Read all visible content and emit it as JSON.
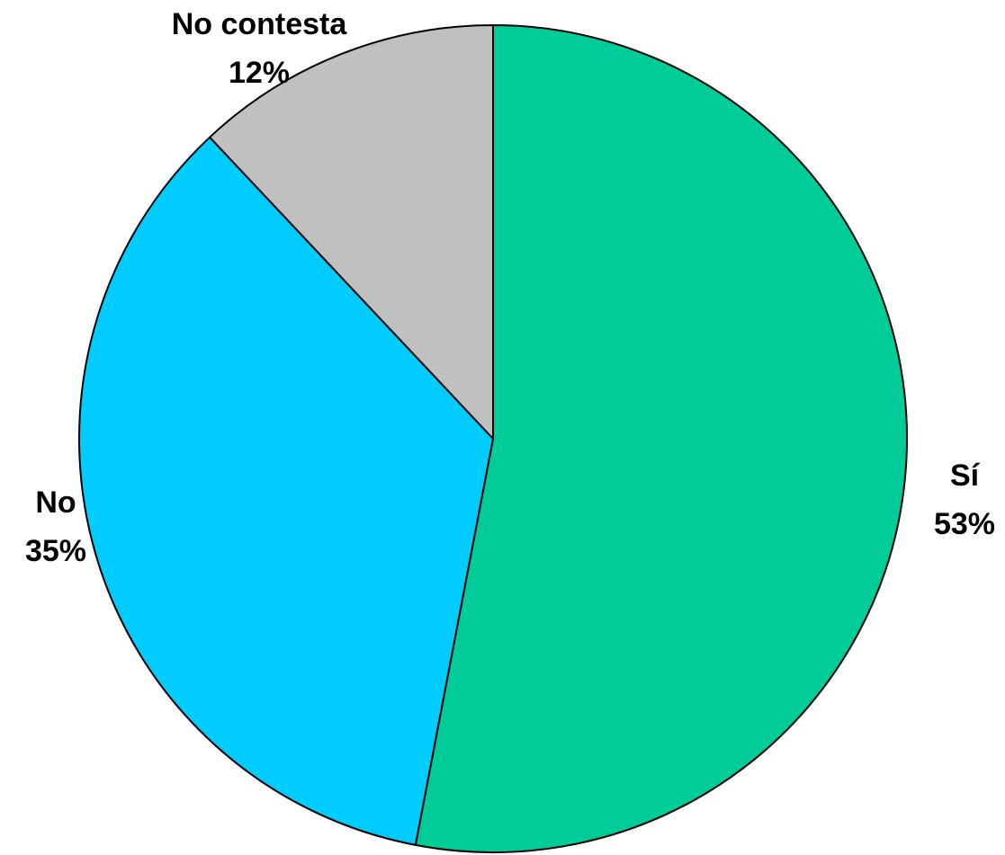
{
  "chart_data": {
    "type": "pie",
    "title": "",
    "slices": [
      {
        "label": "Sí",
        "value": 53,
        "display": "53%",
        "color": "#00CC99"
      },
      {
        "label": "No",
        "value": 35,
        "display": "35%",
        "color": "#00CCFF"
      },
      {
        "label": "No contesta",
        "value": 12,
        "display": "12%",
        "color": "#C0C0C0"
      }
    ],
    "start_angle_deg": 0,
    "direction": "clockwise",
    "legend": "none",
    "data_labels": "outside"
  }
}
